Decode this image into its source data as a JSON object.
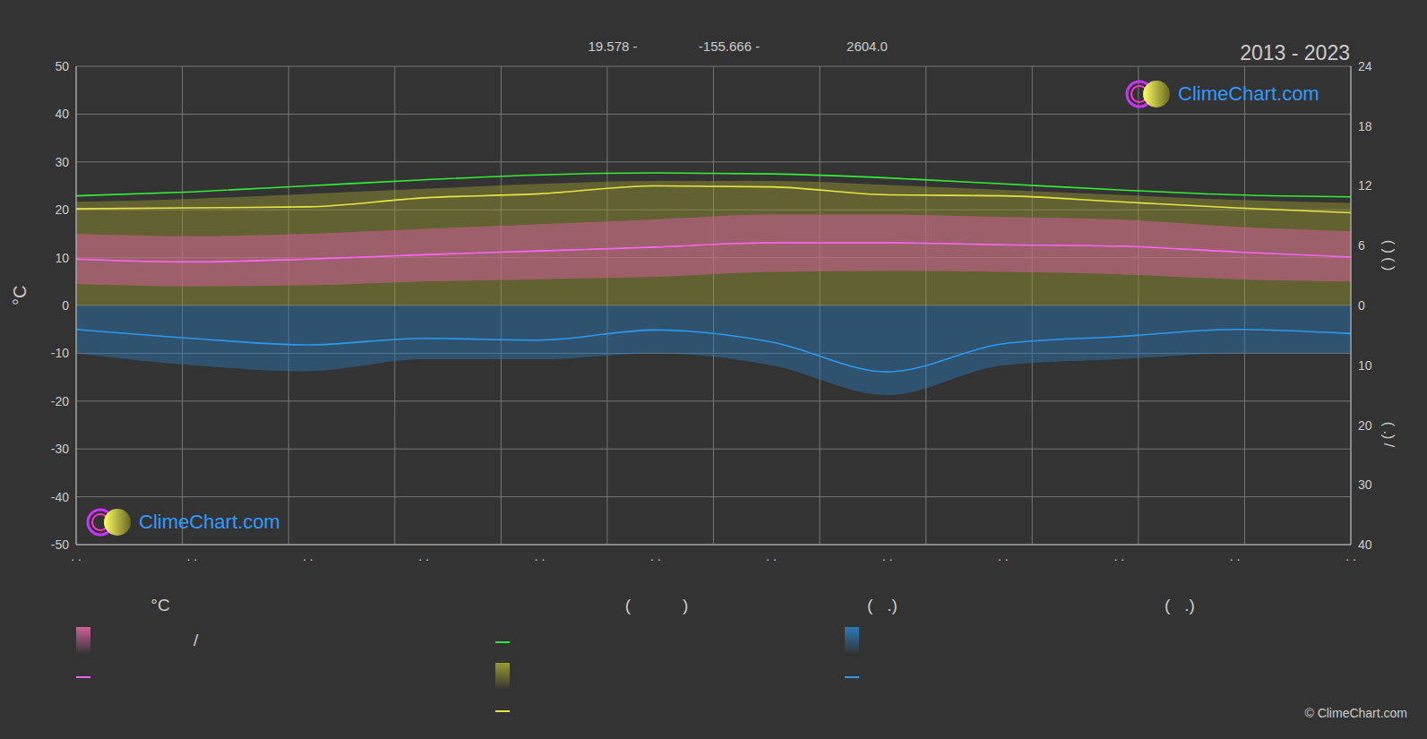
{
  "chart_data": {
    "type": "line",
    "title": "2013 - 2023",
    "subtitle": [
      "19.578 -",
      "-155.666 -",
      "2604.0"
    ],
    "watermark": "ClimeChart.com",
    "credit": "© ClimeChart.com",
    "legend_headers": [
      "°C",
      "(           )",
      "(   .)",
      "(   .)"
    ],
    "categories": [
      ". .",
      ". .",
      ". .",
      ". .",
      ". .",
      ". .",
      ". .",
      ". .",
      ". .",
      ". .",
      ". .",
      ". ."
    ],
    "ylabel": "°C",
    "ylim": [
      -50,
      50
    ],
    "yticks": [
      -50,
      -40,
      -30,
      -20,
      -10,
      0,
      10,
      20,
      30,
      40,
      50
    ],
    "y2label": "(   )   (   )",
    "y2lim": [
      -24,
      24
    ],
    "y2ticks": [
      0,
      6,
      12,
      18,
      24
    ],
    "y3label": "(  .)  /",
    "y3lim": [
      40,
      -40
    ],
    "y3ticks": [
      10,
      20,
      30,
      40
    ],
    "grid": true,
    "series": [
      {
        "type": "area",
        "axis": "y2",
        "color": "#9a9a30",
        "values": [
          10.4,
          10.7,
          11.2,
          11.7,
          12.2,
          12.5,
          12.5,
          12.1,
          11.6,
          11.1,
          10.6,
          10.3
        ]
      },
      {
        "type": "range",
        "axis": "y",
        "name": "/",
        "color": "#d0609a",
        "low": [
          4.5,
          4,
          4.2,
          5,
          5.5,
          6,
          7,
          7.2,
          7,
          6.5,
          5.5,
          5
        ],
        "high": [
          15,
          14.5,
          15,
          16,
          17,
          18,
          19,
          19,
          18.5,
          18,
          16.5,
          15.5
        ]
      },
      {
        "type": "area",
        "axis": "y3",
        "color": "#2a7ab8",
        "values": [
          8,
          10,
          11,
          9,
          9,
          8,
          10,
          15,
          10,
          9,
          8,
          8
        ]
      },
      {
        "axis": "y2",
        "color": "#33ee33",
        "values": [
          11.0,
          11.4,
          12.0,
          12.6,
          13.1,
          13.3,
          13.2,
          12.8,
          12.2,
          11.6,
          11.1,
          10.9
        ]
      },
      {
        "axis": "y2",
        "color": "#e6e640",
        "values": [
          9.7,
          9.8,
          9.9,
          10.8,
          11.2,
          12.0,
          11.9,
          11.1,
          11.0,
          10.4,
          9.8,
          9.3
        ]
      },
      {
        "axis": "y",
        "color": "#ff66ff",
        "values": [
          9.7,
          9.1,
          9.7,
          10.6,
          11.4,
          12.2,
          13.1,
          13.1,
          12.7,
          12.4,
          11.2,
          10.1
        ]
      },
      {
        "axis": "y3",
        "color": "#2a9af0",
        "values": [
          4.0,
          5.5,
          6.6,
          5.5,
          5.8,
          4.1,
          6.1,
          11.1,
          6.4,
          5.2,
          4.0,
          4.7
        ]
      }
    ]
  }
}
